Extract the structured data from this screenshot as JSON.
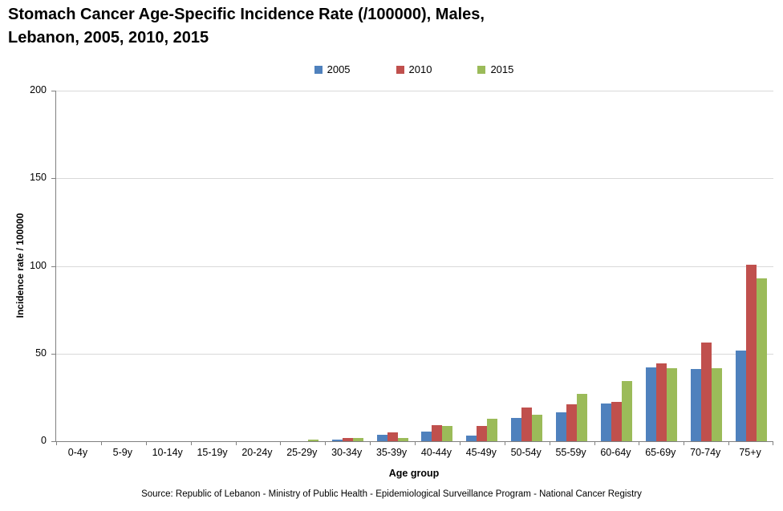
{
  "title": {
    "line1": "Stomach Cancer Age-Specific Incidence Rate (/100000), Males,",
    "line2": "Lebanon, 2005, 2010, 2015"
  },
  "source": "Source: Republic of Lebanon - Ministry of Public Health - Epidemiological Surveillance Program - National Cancer Registry",
  "colors": {
    "axis": "#808080",
    "gridline": "#D9D9D9",
    "series_2005": "#4F81BD",
    "series_2010": "#C0504D",
    "series_2015": "#9BBB59"
  },
  "chart_data": {
    "type": "bar",
    "title": "Stomach Cancer Age-Specific Incidence Rate (/100000), Males, Lebanon, 2005, 2010, 2015",
    "categories": [
      "0-4y",
      "5-9y",
      "10-14y",
      "15-19y",
      "20-24y",
      "25-29y",
      "30-34y",
      "35-39y",
      "40-44y",
      "45-49y",
      "50-54y",
      "55-59y",
      "60-64y",
      "65-69y",
      "70-74y",
      "75+y"
    ],
    "series": [
      {
        "name": "2005",
        "color": "#4F81BD",
        "values": [
          0,
          0,
          0,
          0,
          0,
          0,
          1,
          3.5,
          5.5,
          3,
          13.5,
          16.5,
          21.5,
          42,
          41,
          51.5
        ]
      },
      {
        "name": "2010",
        "color": "#C0504D",
        "values": [
          0,
          0,
          0,
          0,
          0,
          0,
          2,
          5,
          9,
          8.5,
          19,
          21,
          22.5,
          44.5,
          56.5,
          100.5
        ]
      },
      {
        "name": "2015",
        "color": "#9BBB59",
        "values": [
          0,
          0,
          0,
          0,
          0,
          1,
          2,
          2,
          8.5,
          13,
          15,
          27,
          34.5,
          41.5,
          41.5,
          93
        ]
      }
    ],
    "xlabel": "Age group",
    "ylabel": "Incidence rate / 100000",
    "ylim": [
      0,
      200
    ],
    "yticks": [
      0,
      50,
      100,
      150,
      200
    ],
    "grid": true,
    "legend_position": "top"
  }
}
